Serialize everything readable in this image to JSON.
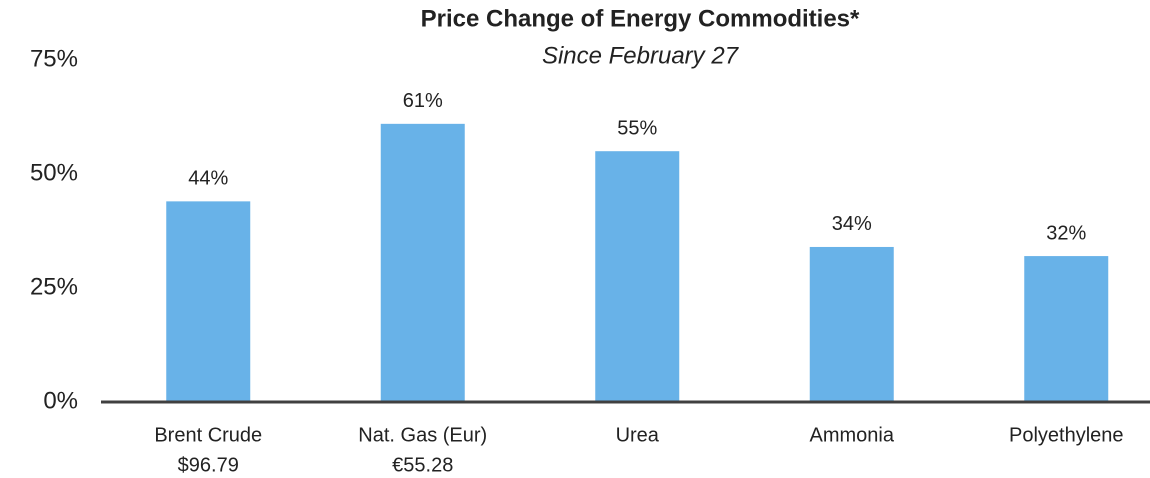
{
  "chart_data": {
    "type": "bar",
    "title": "Price Change of Energy Commodities*",
    "subtitle": "Since February 27",
    "categories": [
      "Brent Crude",
      "Nat. Gas (Eur)",
      "Urea",
      "Ammonia",
      "Polyethylene"
    ],
    "category_notes": [
      "$96.79",
      "€55.28",
      null,
      null,
      null
    ],
    "values": [
      44,
      61,
      55,
      34,
      32
    ],
    "value_labels": [
      "44%",
      "61%",
      "55%",
      "34%",
      "32%"
    ],
    "color": "#68b2e8",
    "ylim": [
      0,
      75
    ],
    "yticks": [
      {
        "value": 0,
        "label": "0%"
      },
      {
        "value": 25,
        "label": "25%"
      },
      {
        "value": 50,
        "label": "50%"
      },
      {
        "value": 75,
        "label": "75%"
      }
    ],
    "grid": false
  }
}
